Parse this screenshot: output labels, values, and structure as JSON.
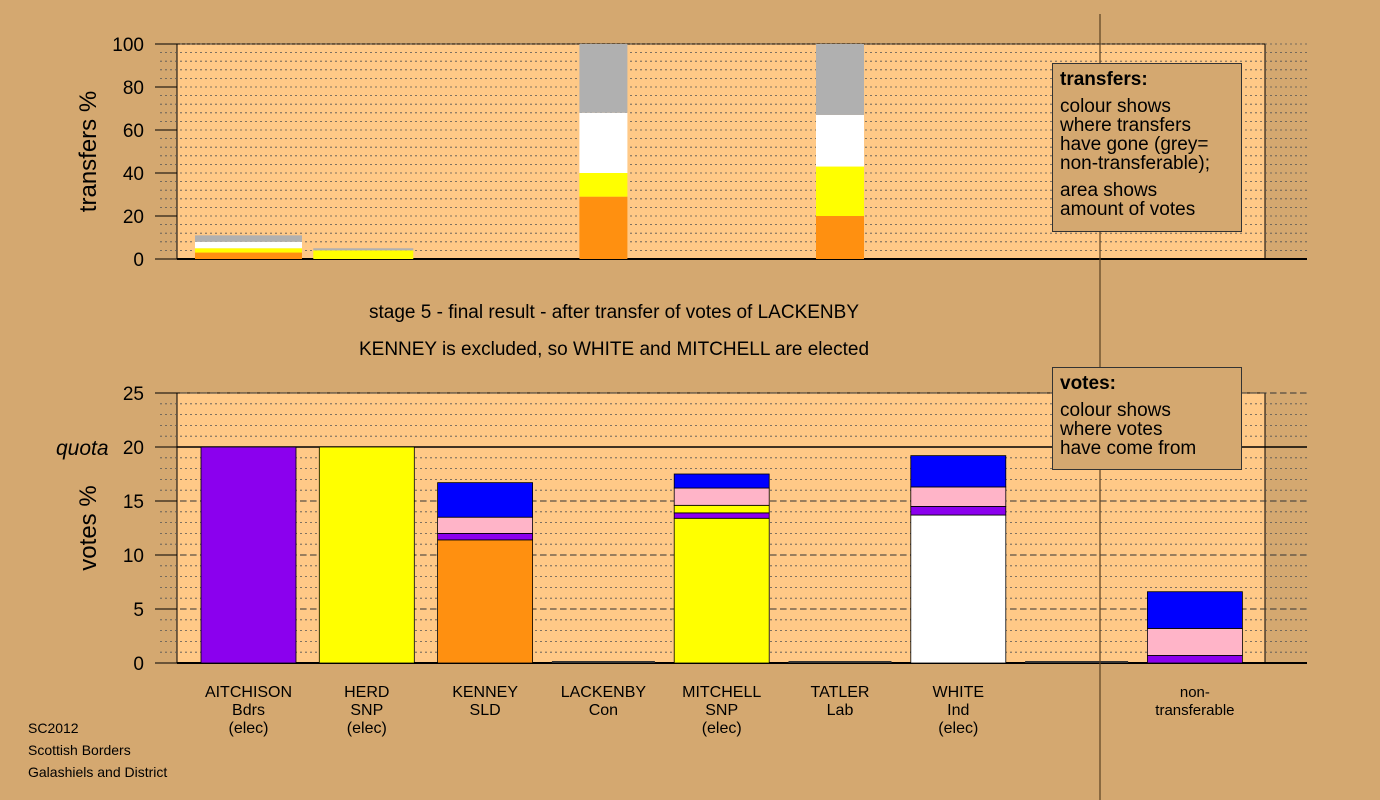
{
  "stage_title": "stage 5 - final result - after transfer of votes of LACKENBY",
  "stage_subtitle": "KENNEY is excluded, so WHITE and MITCHELL are elected",
  "transfers_box": {
    "heading": "transfers:",
    "lines": [
      "colour shows",
      "where transfers",
      "have gone (grey=",
      "non-transferable);"
    ],
    "lines2": [
      "area shows",
      "amount of votes"
    ]
  },
  "votes_box": {
    "heading": "votes:",
    "lines": [
      "colour shows",
      "where votes",
      "have come from"
    ]
  },
  "footer": [
    "SC2012",
    "Scottish Borders",
    "Galashiels and District"
  ],
  "quota_label": "quota",
  "colors": {
    "background": "#d4a870",
    "plot_bg": "#ffc987",
    "purple": "#8b00ee",
    "yellow": "#ffff00",
    "orange": "#ff9010",
    "white": "#ffffff",
    "pink": "#ffb4c8",
    "blue": "#0000ff",
    "grey": "#b0b0b0"
  },
  "chart_data": [
    {
      "type": "bar",
      "stacked": true,
      "ylabel": "transfers %",
      "ylim": [
        0,
        100
      ],
      "yticks": [
        0,
        20,
        40,
        60,
        80,
        100
      ],
      "grid": true,
      "columns": [
        {
          "index": 0,
          "width": 0.11,
          "segments": [
            {
              "color": "orange",
              "value": 3
            },
            {
              "color": "yellow",
              "value": 2
            },
            {
              "color": "white",
              "value": 3
            },
            {
              "color": "grey",
              "value": 3
            }
          ]
        },
        {
          "index": 1,
          "width": 0.05,
          "segments": [
            {
              "color": "yellow",
              "value": 4
            },
            {
              "color": "grey",
              "value": 1
            }
          ]
        },
        {
          "index": 3,
          "width": 1.0,
          "segments": [
            {
              "color": "orange",
              "value": 29
            },
            {
              "color": "yellow",
              "value": 11
            },
            {
              "color": "white",
              "value": 28
            },
            {
              "color": "grey",
              "value": 32
            }
          ]
        },
        {
          "index": 5,
          "width": 1.0,
          "segments": [
            {
              "color": "orange",
              "value": 20
            },
            {
              "color": "yellow",
              "value": 23
            },
            {
              "color": "white",
              "value": 24
            },
            {
              "color": "grey",
              "value": 33
            }
          ]
        }
      ]
    },
    {
      "type": "bar",
      "stacked": true,
      "ylabel": "votes %",
      "ylim": [
        0,
        25
      ],
      "yticks": [
        0,
        5,
        10,
        15,
        20,
        25
      ],
      "quota": 20,
      "grid": true,
      "categories": [
        {
          "name": "AITCHISON",
          "party": "Bdrs",
          "status": "(elec)"
        },
        {
          "name": "HERD",
          "party": "SNP",
          "status": "(elec)"
        },
        {
          "name": "KENNEY",
          "party": "SLD",
          "status": ""
        },
        {
          "name": "LACKENBY",
          "party": "Con",
          "status": ""
        },
        {
          "name": "MITCHELL",
          "party": "SNP",
          "status": "(elec)"
        },
        {
          "name": "TATLER",
          "party": "Lab",
          "status": ""
        },
        {
          "name": "WHITE",
          "party": "Ind",
          "status": "(elec)"
        },
        {
          "name": "",
          "party": "",
          "status": ""
        },
        {
          "name": "non-",
          "party": "transferable",
          "status": ""
        }
      ],
      "bars": [
        [
          {
            "color": "purple",
            "value": 20.0
          }
        ],
        [
          {
            "color": "yellow",
            "value": 20.0
          }
        ],
        [
          {
            "color": "orange",
            "value": 11.4
          },
          {
            "color": "purple",
            "value": 0.6
          },
          {
            "color": "pink",
            "value": 1.5
          },
          {
            "color": "blue",
            "value": 3.2
          }
        ],
        [],
        [
          {
            "color": "yellow",
            "value": 13.4
          },
          {
            "color": "purple",
            "value": 0.5
          },
          {
            "color": "yellow",
            "value": 0.7
          },
          {
            "color": "pink",
            "value": 1.6
          },
          {
            "color": "blue",
            "value": 1.3
          }
        ],
        [],
        [
          {
            "color": "white",
            "value": 13.7
          },
          {
            "color": "purple",
            "value": 0.8
          },
          {
            "color": "pink",
            "value": 1.8
          },
          {
            "color": "blue",
            "value": 2.9
          }
        ],
        [],
        [
          {
            "color": "purple",
            "value": 0.7
          },
          {
            "color": "pink",
            "value": 2.5
          },
          {
            "color": "blue",
            "value": 3.4
          }
        ]
      ]
    }
  ]
}
